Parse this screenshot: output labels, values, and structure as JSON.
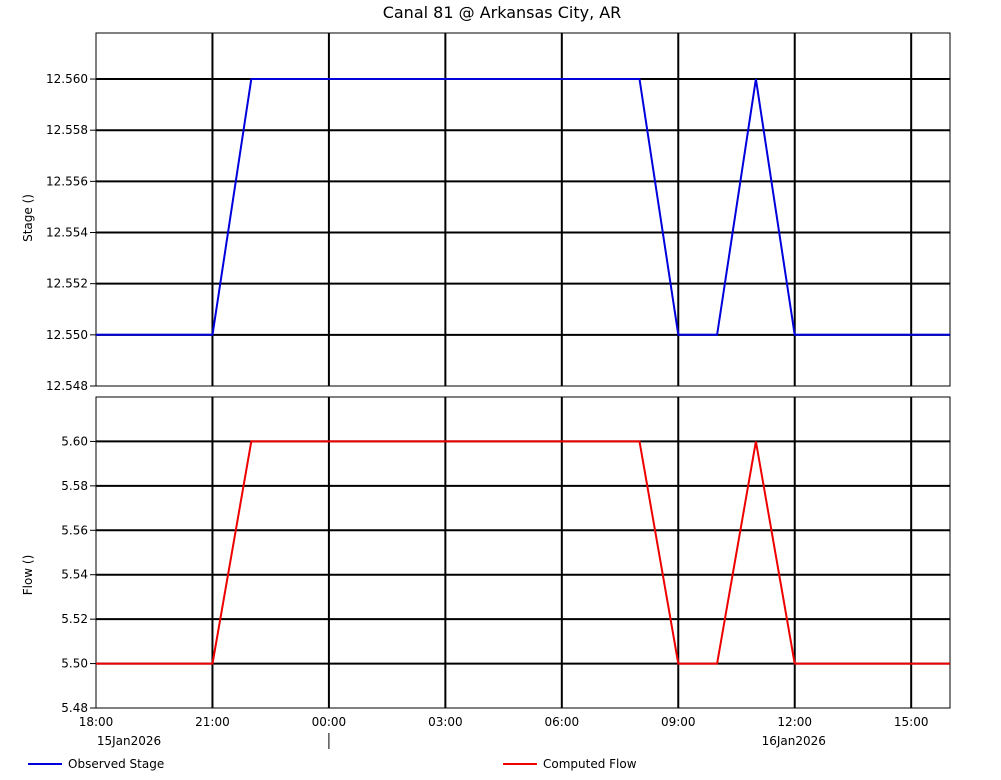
{
  "chart_data": [
    {
      "type": "line",
      "title": "Canal 81 @ Arkansas City, AR",
      "ylabel": "Stage ()",
      "ylim": [
        12.548,
        12.5618
      ],
      "yticks": [
        "12.548",
        "12.550",
        "12.552",
        "12.554",
        "12.556",
        "12.558",
        "12.560"
      ],
      "series": [
        {
          "name": "Observed Stage",
          "color": "#0000dd",
          "x": [
            "2026-01-15 18:00",
            "2026-01-15 21:00",
            "2026-01-15 22:00",
            "2026-01-16 08:00",
            "2026-01-16 09:00",
            "2026-01-16 10:00",
            "2026-01-16 11:00",
            "2026-01-16 12:00",
            "2026-01-16 16:00"
          ],
          "y": [
            12.55,
            12.55,
            12.56,
            12.56,
            12.55,
            12.55,
            12.56,
            12.55,
            12.55
          ]
        }
      ]
    },
    {
      "type": "line",
      "ylabel": "Flow ()",
      "ylim": [
        5.48,
        5.62
      ],
      "yticks": [
        "5.48",
        "5.50",
        "5.52",
        "5.54",
        "5.56",
        "5.58",
        "5.60"
      ],
      "series": [
        {
          "name": "Computed Flow",
          "color": "#ee0000",
          "x": [
            "2026-01-15 18:00",
            "2026-01-15 21:00",
            "2026-01-15 22:00",
            "2026-01-16 08:00",
            "2026-01-16 09:00",
            "2026-01-16 10:00",
            "2026-01-16 11:00",
            "2026-01-16 12:00",
            "2026-01-16 16:00"
          ],
          "y": [
            5.5,
            5.5,
            5.6,
            5.6,
            5.5,
            5.5,
            5.6,
            5.5,
            5.5
          ]
        }
      ]
    }
  ],
  "x_axis": {
    "range": [
      "2026-01-15 18:00",
      "2026-01-16 16:00"
    ],
    "tick_labels": [
      "18:00",
      "21:00",
      "00:00",
      "03:00",
      "06:00",
      "09:00",
      "12:00",
      "15:00"
    ],
    "date_labels": [
      "15Jan2026",
      "16Jan2026"
    ]
  },
  "legend": [
    {
      "label": "Observed Stage",
      "color": "#0000dd"
    },
    {
      "label": "Computed Flow",
      "color": "#ee0000"
    }
  ],
  "grid": true,
  "legend_position": "bottom"
}
